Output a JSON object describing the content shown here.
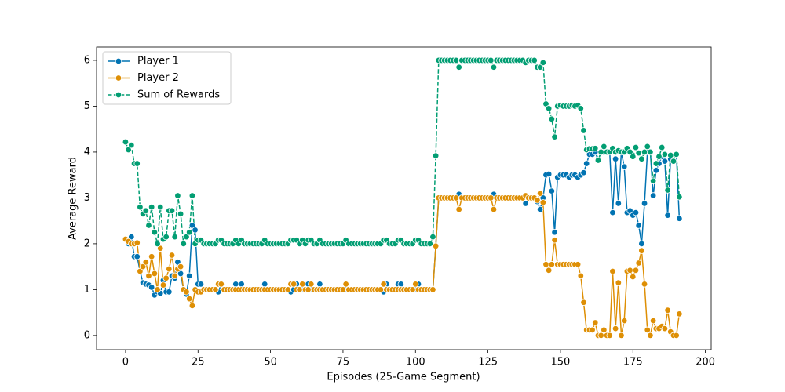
{
  "chart_data": {
    "type": "line",
    "xlabel": "Episodes (25-Game Segment)",
    "ylabel": "Average Reward",
    "xlim": [
      -10,
      202
    ],
    "ylim": [
      -0.31,
      6.29
    ],
    "xticks": [
      0,
      25,
      50,
      75,
      100,
      125,
      150,
      175,
      200
    ],
    "yticks": [
      0,
      1,
      2,
      3,
      4,
      5,
      6
    ],
    "grid": false,
    "legend": "upper left",
    "markers": true,
    "x": [
      0,
      1,
      2,
      3,
      4,
      5,
      6,
      7,
      8,
      9,
      10,
      11,
      12,
      13,
      14,
      15,
      16,
      17,
      18,
      19,
      20,
      21,
      22,
      23,
      24,
      25,
      26,
      27,
      28,
      29,
      30,
      31,
      32,
      33,
      34,
      35,
      36,
      37,
      38,
      39,
      40,
      41,
      42,
      43,
      44,
      45,
      46,
      47,
      48,
      49,
      50,
      51,
      52,
      53,
      54,
      55,
      56,
      57,
      58,
      59,
      60,
      61,
      62,
      63,
      64,
      65,
      66,
      67,
      68,
      69,
      70,
      71,
      72,
      73,
      74,
      75,
      76,
      77,
      78,
      79,
      80,
      81,
      82,
      83,
      84,
      85,
      86,
      87,
      88,
      89,
      90,
      91,
      92,
      93,
      94,
      95,
      96,
      97,
      98,
      99,
      100,
      101,
      102,
      103,
      104,
      105,
      106,
      107,
      108,
      109,
      110,
      111,
      112,
      113,
      114,
      115,
      116,
      117,
      118,
      119,
      120,
      121,
      122,
      123,
      124,
      125,
      126,
      127,
      128,
      129,
      130,
      131,
      132,
      133,
      134,
      135,
      136,
      137,
      138,
      139,
      140,
      141,
      142,
      143,
      144,
      145,
      146,
      147,
      148,
      149,
      150,
      151,
      152,
      153,
      154,
      155,
      156,
      157,
      158,
      159,
      160,
      161,
      162,
      163,
      164,
      165,
      166,
      167,
      168,
      169,
      170,
      171,
      172,
      173,
      174,
      175,
      176,
      177,
      178,
      179,
      180,
      181,
      182,
      183,
      184,
      185,
      186,
      187,
      188,
      189,
      190,
      191
    ],
    "series": [
      {
        "name": "Player 1",
        "color": "#0173b2",
        "dashed": false,
        "values": [
          2.1,
          2.0,
          2.15,
          1.72,
          1.72,
          1.4,
          1.15,
          1.12,
          1.1,
          1.05,
          0.88,
          0.95,
          0.92,
          1.2,
          0.95,
          0.95,
          1.3,
          1.25,
          1.6,
          1.35,
          1.0,
          0.9,
          1.3,
          2.4,
          2.3,
          1.12,
          1.12,
          1.0,
          1.0,
          1.0,
          1.0,
          1.0,
          0.95,
          1.12,
          1.0,
          1.0,
          1.0,
          1.0,
          1.12,
          1.0,
          1.12,
          1.0,
          1.0,
          1.0,
          1.0,
          1.0,
          1.0,
          1.0,
          1.12,
          1.0,
          1.0,
          1.0,
          1.0,
          1.0,
          1.0,
          1.0,
          1.0,
          0.95,
          1.0,
          1.12,
          1.0,
          1.0,
          1.0,
          1.12,
          1.0,
          1.0,
          1.0,
          1.12,
          1.0,
          1.0,
          1.0,
          1.0,
          1.0,
          1.0,
          1.0,
          1.0,
          1.0,
          1.0,
          1.0,
          1.0,
          1.0,
          1.0,
          1.0,
          1.0,
          1.0,
          1.0,
          1.0,
          1.0,
          1.0,
          0.95,
          1.12,
          1.0,
          1.0,
          1.0,
          1.12,
          1.12,
          1.0,
          1.0,
          1.0,
          1.0,
          1.0,
          1.12,
          1.0,
          1.0,
          1.0,
          1.0,
          1.0,
          1.95,
          3.0,
          3.0,
          3.0,
          3.0,
          3.0,
          3.0,
          3.0,
          3.08,
          3.0,
          3.0,
          3.0,
          3.0,
          3.0,
          3.0,
          3.0,
          3.0,
          3.0,
          3.0,
          3.0,
          3.08,
          3.0,
          3.0,
          3.0,
          3.0,
          3.0,
          3.0,
          3.0,
          3.0,
          3.0,
          3.0,
          2.88,
          3.0,
          3.0,
          3.0,
          2.92,
          2.75,
          3.0,
          3.5,
          3.52,
          3.15,
          2.25,
          3.45,
          3.5,
          3.5,
          3.5,
          3.45,
          3.5,
          3.5,
          3.45,
          3.5,
          3.55,
          3.75,
          3.95,
          3.95,
          4.0,
          3.82,
          4.0,
          4.0,
          4.0,
          4.0,
          2.68,
          3.85,
          2.88,
          4.0,
          3.68,
          2.68,
          2.72,
          2.62,
          2.68,
          2.4,
          2.0,
          2.88,
          4.0,
          4.0,
          3.05,
          3.6,
          3.75,
          3.9,
          3.8,
          2.62,
          3.85,
          3.8,
          3.95,
          2.55
        ]
      },
      {
        "name": "Player 2",
        "color": "#de8f05",
        "dashed": false,
        "values": [
          2.1,
          2.05,
          2.0,
          2.0,
          2.02,
          1.4,
          1.5,
          1.6,
          1.3,
          1.72,
          1.35,
          1.0,
          1.9,
          1.1,
          1.25,
          1.45,
          1.75,
          1.3,
          1.45,
          1.5,
          1.0,
          0.95,
          0.8,
          0.65,
          1.0,
          0.95,
          0.95,
          1.0,
          1.0,
          1.0,
          1.0,
          1.0,
          1.12,
          1.12,
          1.0,
          1.0,
          1.0,
          1.0,
          1.0,
          1.0,
          1.0,
          1.0,
          1.0,
          1.0,
          1.0,
          1.0,
          1.0,
          1.0,
          1.0,
          1.0,
          1.0,
          1.0,
          1.0,
          1.0,
          1.0,
          1.0,
          1.0,
          1.12,
          1.12,
          1.0,
          1.0,
          1.12,
          1.0,
          1.0,
          1.12,
          1.0,
          1.0,
          1.0,
          1.0,
          1.0,
          1.0,
          1.0,
          1.0,
          1.0,
          1.0,
          1.0,
          1.12,
          1.0,
          1.0,
          1.0,
          1.0,
          1.0,
          1.0,
          1.0,
          1.0,
          1.0,
          1.0,
          1.0,
          1.0,
          1.12,
          1.0,
          1.0,
          1.0,
          1.0,
          1.0,
          1.0,
          1.0,
          1.0,
          1.0,
          1.0,
          1.12,
          1.0,
          1.0,
          1.0,
          1.0,
          1.0,
          1.0,
          1.95,
          3.0,
          3.0,
          3.0,
          3.0,
          3.0,
          3.0,
          3.0,
          2.75,
          3.0,
          3.0,
          3.0,
          3.0,
          3.0,
          3.0,
          3.0,
          3.0,
          3.0,
          3.0,
          3.0,
          2.75,
          3.0,
          3.0,
          3.0,
          3.0,
          3.0,
          3.0,
          3.0,
          3.0,
          3.0,
          3.0,
          3.05,
          3.0,
          3.0,
          3.0,
          2.95,
          3.1,
          2.9,
          1.55,
          1.42,
          1.55,
          2.08,
          1.55,
          1.55,
          1.55,
          1.55,
          1.55,
          1.55,
          1.55,
          1.55,
          1.3,
          0.72,
          0.12,
          0.12,
          0.12,
          0.28,
          0.0,
          0.0,
          0.12,
          0.0,
          0.0,
          1.4,
          0.15,
          1.15,
          0.0,
          0.32,
          1.4,
          1.42,
          1.28,
          1.42,
          1.58,
          1.85,
          1.12,
          0.12,
          0.0,
          0.32,
          0.15,
          0.15,
          0.2,
          0.15,
          0.55,
          0.08,
          0.0,
          0.0,
          0.47
        ]
      },
      {
        "name": "Sum of Rewards",
        "color": "#029e73",
        "dashed": true,
        "values": [
          4.22,
          4.05,
          4.15,
          3.75,
          3.75,
          2.8,
          2.65,
          2.72,
          2.4,
          2.8,
          2.25,
          2.0,
          2.8,
          2.1,
          2.15,
          2.72,
          2.72,
          2.15,
          3.05,
          2.65,
          2.0,
          2.15,
          2.25,
          3.05,
          2.0,
          2.08,
          2.08,
          2.0,
          2.0,
          2.0,
          2.0,
          2.0,
          2.08,
          2.08,
          2.0,
          2.0,
          2.0,
          2.0,
          2.08,
          2.0,
          2.08,
          2.0,
          2.0,
          2.0,
          2.0,
          2.0,
          2.0,
          2.0,
          2.08,
          2.0,
          2.0,
          2.0,
          2.0,
          2.0,
          2.0,
          2.0,
          2.0,
          2.08,
          2.08,
          2.08,
          2.0,
          2.08,
          2.0,
          2.08,
          2.08,
          2.0,
          2.0,
          2.08,
          2.0,
          2.0,
          2.0,
          2.0,
          2.0,
          2.0,
          2.0,
          2.0,
          2.08,
          2.0,
          2.0,
          2.0,
          2.0,
          2.0,
          2.0,
          2.0,
          2.0,
          2.0,
          2.0,
          2.0,
          2.0,
          2.08,
          2.08,
          2.0,
          2.0,
          2.0,
          2.08,
          2.08,
          2.0,
          2.0,
          2.0,
          2.0,
          2.08,
          2.08,
          2.0,
          2.0,
          2.0,
          2.0,
          2.15,
          3.92,
          6.0,
          6.0,
          6.0,
          6.0,
          6.0,
          6.0,
          6.0,
          5.85,
          6.0,
          6.0,
          6.0,
          6.0,
          6.0,
          6.0,
          6.0,
          6.0,
          6.0,
          6.0,
          6.0,
          5.85,
          6.0,
          6.0,
          6.0,
          6.0,
          6.0,
          6.0,
          6.0,
          6.0,
          6.0,
          6.0,
          5.95,
          6.0,
          6.0,
          6.0,
          5.85,
          5.85,
          5.95,
          5.05,
          4.95,
          4.72,
          4.33,
          5.0,
          5.02,
          5.0,
          5.0,
          5.0,
          5.02,
          5.0,
          5.02,
          4.95,
          4.47,
          4.05,
          4.07,
          4.07,
          4.08,
          3.82,
          4.0,
          4.12,
          4.0,
          4.0,
          4.08,
          4.0,
          4.03,
          4.0,
          4.0,
          4.08,
          4.0,
          3.9,
          4.1,
          3.98,
          3.85,
          4.0,
          4.12,
          4.0,
          3.37,
          3.75,
          3.9,
          4.1,
          3.95,
          3.17,
          3.93,
          3.8,
          3.95,
          3.02
        ]
      }
    ]
  }
}
